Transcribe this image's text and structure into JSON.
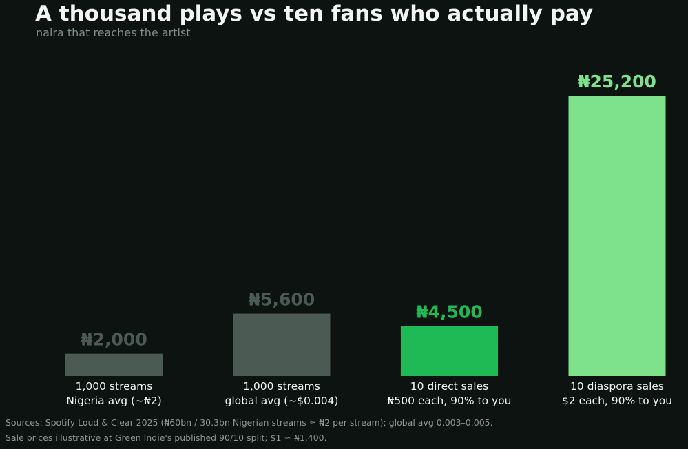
{
  "chart_data": {
    "type": "bar",
    "title": "A thousand plays vs ten fans who actually pay",
    "subtitle": "naira that reaches the artist",
    "xlabel": "",
    "ylabel": "",
    "ylim": [
      0,
      25200
    ],
    "grid": false,
    "legend": "none",
    "categories": [
      [
        "1,000 streams",
        "Nigeria avg (~₦2)"
      ],
      [
        "1,000 streams",
        "global avg (~$0.004)"
      ],
      [
        "10 direct sales",
        "₦500 each, 90% to you"
      ],
      [
        "10 diaspora sales",
        "$2 each, 90% to you"
      ]
    ],
    "values": [
      2000,
      5600,
      4500,
      25200
    ],
    "value_labels": [
      "₦2,000",
      "₦5,600",
      "₦4,500",
      "₦25,200"
    ],
    "bar_colors": [
      "#4b5b54",
      "#4b5b54",
      "#1fba55",
      "#7ee28c"
    ],
    "value_label_colors": [
      "#4b5b54",
      "#4b5b54",
      "#1fba55",
      "#7ee28c"
    ]
  },
  "sources": [
    "Sources: Spotify Loud & Clear 2025 (₦60bn / 30.3bn Nigerian streams ≈ ₦2 per stream); global avg 0.003–0.005.",
    "Sale prices illustrative at Green Indie's published 90/10 split; $1 ≈ ₦1,400."
  ],
  "colors": {
    "background": "#0c1311",
    "title": "#f3f5f4",
    "subtitle": "#7d8a85",
    "category_label": "#f3f5f4",
    "source": "#8a9590"
  }
}
